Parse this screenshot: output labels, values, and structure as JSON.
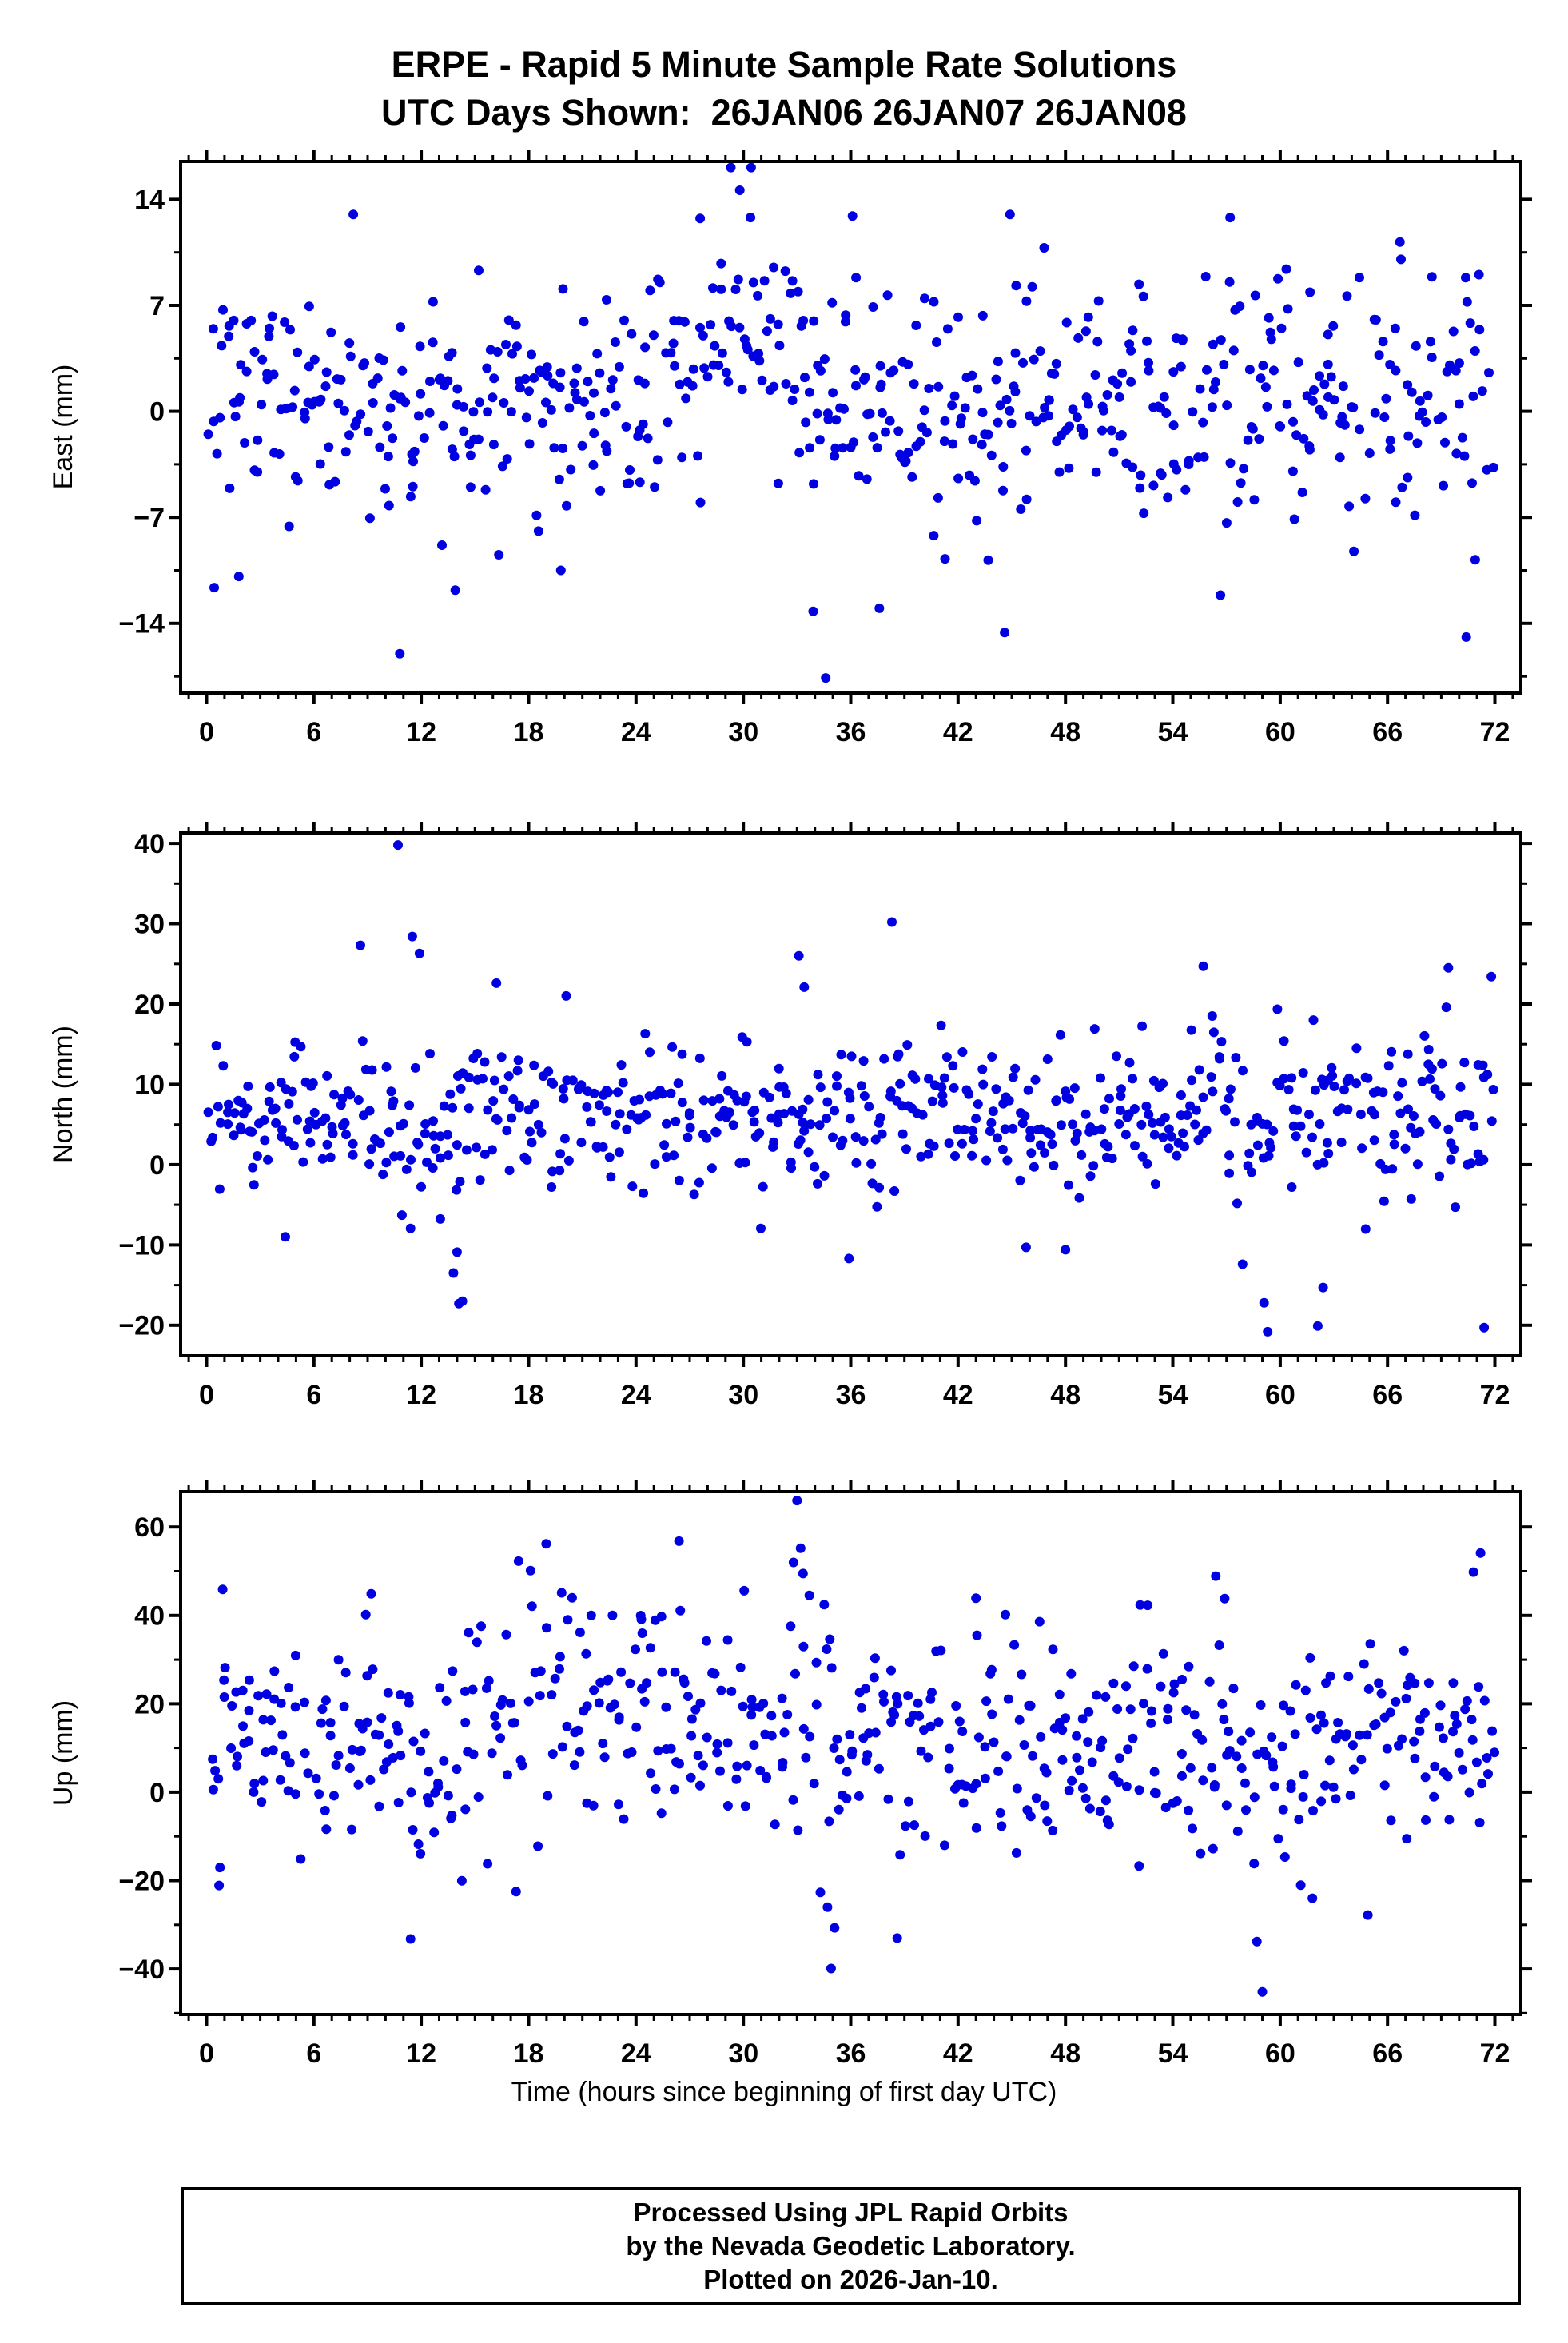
{
  "title": {
    "line1": "ERPE - Rapid 5 Minute Sample Rate Solutions",
    "line2": "UTC Days Shown:  26JAN06 26JAN07 26JAN08"
  },
  "xlabel": "Time (hours since beginning of first day UTC)",
  "footer": {
    "line1": "Processed Using JPL Rapid Orbits",
    "line2": "by the Nevada Geodetic Laboratory.",
    "line3": "Plotted on 2026-Jan-10."
  },
  "colors": {
    "dot": "#0000e0",
    "frame": "#000000",
    "text": "#000000"
  },
  "chart_data": [
    {
      "type": "scatter",
      "name": "east",
      "ylabel": "East (mm)",
      "xticks": [
        0,
        6,
        12,
        18,
        24,
        30,
        36,
        42,
        48,
        54,
        60,
        66,
        72
      ],
      "yticks": [
        -14,
        -7,
        0,
        7,
        14
      ],
      "xlim": [
        -1.45,
        73.45
      ],
      "ylim": [
        -18.6,
        16.5
      ],
      "x_minor_step": 1,
      "y_minor_step": 3.5,
      "points_model": {
        "n": 640,
        "seed": 101,
        "x_start": 0.15,
        "x_end": 71.9,
        "base": 0.8,
        "sd": 4.0,
        "tail_prob": 0.05,
        "tail_scale": 8,
        "gap_prob": 0.04,
        "bumps": [
          {
            "x": 30,
            "w": 2.5,
            "amp": 4.5
          },
          {
            "x": 3,
            "w": 2.0,
            "amp": 1.5
          }
        ]
      },
      "outliers": [
        [
          10.8,
          -16.0
        ],
        [
          29.3,
          16.2
        ],
        [
          34.6,
          -17.6
        ],
        [
          44.6,
          -14.6
        ],
        [
          70.4,
          -14.9
        ],
        [
          13.9,
          -11.8
        ],
        [
          19.8,
          -10.5
        ],
        [
          33.9,
          -13.2
        ],
        [
          70.9,
          -9.8
        ],
        [
          36.1,
          12.9
        ],
        [
          44.9,
          13.0
        ],
        [
          57.2,
          12.8
        ],
        [
          1.8,
          -10.9
        ],
        [
          8.2,
          13.0
        ],
        [
          29.8,
          14.6
        ],
        [
          30.4,
          12.8
        ],
        [
          37.6,
          -13.0
        ]
      ]
    },
    {
      "type": "scatter",
      "name": "north",
      "ylabel": "North (mm)",
      "xticks": [
        0,
        6,
        12,
        18,
        24,
        30,
        36,
        42,
        48,
        54,
        60,
        66,
        72
      ],
      "yticks": [
        -20,
        -10,
        0,
        10,
        20,
        30,
        40
      ],
      "xlim": [
        -1.45,
        73.45
      ],
      "ylim": [
        -23.8,
        41.3
      ],
      "x_minor_step": 1,
      "y_minor_step": 5,
      "points_model": {
        "n": 640,
        "seed": 202,
        "x_start": 0.15,
        "x_end": 71.9,
        "base": 6.3,
        "sd": 4.4,
        "tail_prob": 0.05,
        "tail_scale": 10,
        "gap_prob": 0.04,
        "bumps": [
          {
            "x": 13.5,
            "w": 1.5,
            "amp": -3.0
          },
          {
            "x": 16,
            "w": 2.0,
            "amp": 3.0
          }
        ]
      },
      "outliers": [
        [
          10.7,
          39.8
        ],
        [
          38.3,
          30.2
        ],
        [
          11.5,
          28.4
        ],
        [
          8.6,
          27.3
        ],
        [
          11.9,
          26.3
        ],
        [
          33.1,
          26.0
        ],
        [
          55.7,
          24.7
        ],
        [
          69.4,
          24.5
        ],
        [
          71.8,
          23.4
        ],
        [
          33.4,
          22.1
        ],
        [
          14.1,
          -17.3
        ],
        [
          14.3,
          -17.0
        ],
        [
          13.8,
          -13.5
        ],
        [
          14.0,
          -10.9
        ],
        [
          59.3,
          -20.8
        ],
        [
          59.1,
          -17.2
        ],
        [
          62.1,
          -20.1
        ],
        [
          62.4,
          -15.3
        ],
        [
          71.4,
          -20.3
        ],
        [
          35.9,
          -11.7
        ],
        [
          45.8,
          -10.3
        ],
        [
          48.0,
          -10.6
        ],
        [
          4.4,
          -9.0
        ],
        [
          57.9,
          -12.4
        ],
        [
          16.2,
          22.6
        ],
        [
          20.1,
          21.0
        ],
        [
          30.2,
          15.3
        ]
      ]
    },
    {
      "type": "scatter",
      "name": "up",
      "ylabel": "Up (mm)",
      "xticks": [
        0,
        6,
        12,
        18,
        24,
        30,
        36,
        42,
        48,
        54,
        60,
        66,
        72
      ],
      "yticks": [
        -40,
        -20,
        0,
        20,
        40,
        60
      ],
      "xlim": [
        -1.45,
        73.45
      ],
      "ylim": [
        -50.3,
        68.0
      ],
      "x_minor_step": 1,
      "y_minor_step": 10,
      "points_model": {
        "n": 600,
        "seed": 303,
        "x_start": 0.15,
        "x_end": 71.9,
        "base": 12.0,
        "sd": 12.0,
        "tail_prob": 0.06,
        "tail_scale": 22,
        "gap_prob": 0.04,
        "bumps": [
          {
            "x": 33,
            "w": 1.2,
            "amp": 8.0
          },
          {
            "x": 22,
            "w": 3.0,
            "amp": 6.0
          },
          {
            "x": 58.5,
            "w": 1.2,
            "amp": -10.0
          },
          {
            "x": 12,
            "w": 1.5,
            "amp": -8.0
          }
        ]
      },
      "outliers": [
        [
          33.0,
          66.0
        ],
        [
          33.2,
          55.2
        ],
        [
          26.4,
          56.8
        ],
        [
          32.8,
          52.0
        ],
        [
          34.9,
          -39.9
        ],
        [
          35.1,
          -30.7
        ],
        [
          59.0,
          -45.2
        ],
        [
          58.7,
          -33.8
        ],
        [
          11.4,
          -33.2
        ],
        [
          38.6,
          -33.0
        ],
        [
          71.2,
          54.1
        ],
        [
          70.8,
          49.8
        ],
        [
          0.9,
          45.9
        ],
        [
          9.2,
          44.9
        ],
        [
          56.4,
          48.9
        ],
        [
          43.0,
          43.9
        ],
        [
          56.9,
          43.8
        ],
        [
          8.9,
          40.2
        ],
        [
          21.5,
          40.0
        ],
        [
          24.3,
          39.1
        ],
        [
          64.9,
          -27.8
        ],
        [
          61.8,
          -24.0
        ],
        [
          17.3,
          -22.5
        ],
        [
          34.7,
          -26.0
        ]
      ]
    }
  ]
}
